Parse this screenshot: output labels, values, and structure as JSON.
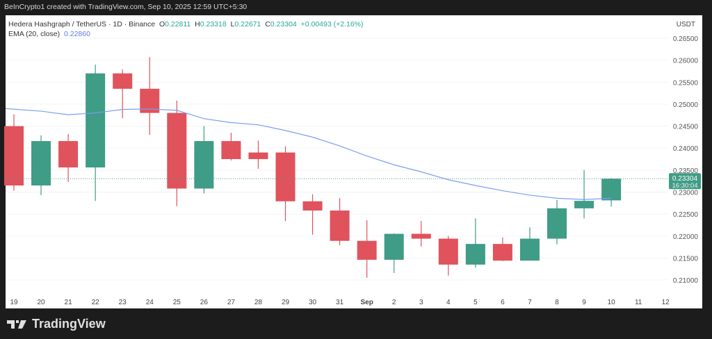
{
  "header": {
    "credit": "BeInCrypto1 created with TradingView.com, Sep 10, 2025 12:59 UTC+5:30"
  },
  "legend": {
    "symbol": "Hedera Hashgraph / TetherUS · 1D · Binance",
    "o_label": "O",
    "o": "0.22811",
    "h_label": "H",
    "h": "0.23318",
    "l_label": "L",
    "l": "0.22671",
    "c_label": "C",
    "c": "0.23304",
    "change": "+0.00493 (+2.16%)",
    "ema_label": "EMA (20, close)",
    "ema_value": "0.22860"
  },
  "footer": {
    "logo_text": "TradingView"
  },
  "chart_data": {
    "type": "candlestick",
    "currency_label": "USDT",
    "ylim": [
      0.2065,
      0.268
    ],
    "yticks": [
      "0.26500",
      "0.26000",
      "0.25500",
      "0.25000",
      "0.24500",
      "0.24000",
      "0.23500",
      "0.23000",
      "0.22500",
      "0.22000",
      "0.21500",
      "0.21000"
    ],
    "xticks": [
      "19",
      "20",
      "21",
      "22",
      "23",
      "24",
      "25",
      "26",
      "27",
      "28",
      "29",
      "30",
      "31",
      "Sep",
      "2",
      "3",
      "4",
      "5",
      "6",
      "7",
      "8",
      "9",
      "10",
      "11",
      "12"
    ],
    "colors": {
      "up": "#3f9c86",
      "down": "#e0525c",
      "ema": "#7b9ef0"
    },
    "last_price": {
      "value": "0.23304",
      "countdown": "16:30:04"
    },
    "candles": [
      {
        "d": "19",
        "o": 0.245,
        "h": 0.2477,
        "l": 0.2303,
        "c": 0.2315
      },
      {
        "d": "20",
        "o": 0.2315,
        "h": 0.2429,
        "l": 0.2293,
        "c": 0.2416
      },
      {
        "d": "21",
        "o": 0.2416,
        "h": 0.2432,
        "l": 0.2323,
        "c": 0.2356
      },
      {
        "d": "22",
        "o": 0.2356,
        "h": 0.259,
        "l": 0.228,
        "c": 0.257
      },
      {
        "d": "23",
        "o": 0.257,
        "h": 0.2579,
        "l": 0.2468,
        "c": 0.2535
      },
      {
        "d": "24",
        "o": 0.2535,
        "h": 0.2607,
        "l": 0.243,
        "c": 0.248
      },
      {
        "d": "25",
        "o": 0.248,
        "h": 0.2508,
        "l": 0.2268,
        "c": 0.2308
      },
      {
        "d": "26",
        "o": 0.2308,
        "h": 0.245,
        "l": 0.2297,
        "c": 0.2416
      },
      {
        "d": "27",
        "o": 0.2416,
        "h": 0.2435,
        "l": 0.2372,
        "c": 0.2375
      },
      {
        "d": "28",
        "o": 0.239,
        "h": 0.2417,
        "l": 0.2353,
        "c": 0.2375
      },
      {
        "d": "29",
        "o": 0.239,
        "h": 0.2404,
        "l": 0.2234,
        "c": 0.2279
      },
      {
        "d": "30",
        "o": 0.2279,
        "h": 0.2295,
        "l": 0.2203,
        "c": 0.2258
      },
      {
        "d": "31",
        "o": 0.2258,
        "h": 0.2286,
        "l": 0.2179,
        "c": 0.2189
      },
      {
        "d": "Sep 1",
        "o": 0.2189,
        "h": 0.2236,
        "l": 0.2105,
        "c": 0.2146
      },
      {
        "d": "2",
        "o": 0.2146,
        "h": 0.2206,
        "l": 0.2116,
        "c": 0.2205
      },
      {
        "d": "3",
        "o": 0.2205,
        "h": 0.2234,
        "l": 0.2176,
        "c": 0.2194
      },
      {
        "d": "4",
        "o": 0.2194,
        "h": 0.22,
        "l": 0.211,
        "c": 0.2135
      },
      {
        "d": "5",
        "o": 0.2135,
        "h": 0.224,
        "l": 0.2128,
        "c": 0.2182
      },
      {
        "d": "6",
        "o": 0.2182,
        "h": 0.2197,
        "l": 0.2143,
        "c": 0.2144
      },
      {
        "d": "7",
        "o": 0.2144,
        "h": 0.222,
        "l": 0.2144,
        "c": 0.2194
      },
      {
        "d": "8",
        "o": 0.2194,
        "h": 0.2282,
        "l": 0.2181,
        "c": 0.2263
      },
      {
        "d": "9",
        "o": 0.2263,
        "h": 0.235,
        "l": 0.224,
        "c": 0.228
      },
      {
        "d": "10",
        "o": 0.22811,
        "h": 0.23318,
        "l": 0.22671,
        "c": 0.23304
      }
    ],
    "ema": [
      0.249,
      0.2484,
      0.2476,
      0.248,
      0.2488,
      0.2489,
      0.2486,
      0.2467,
      0.2458,
      0.2453,
      0.244,
      0.2425,
      0.2405,
      0.2382,
      0.2362,
      0.2346,
      0.2328,
      0.2315,
      0.2303,
      0.2293,
      0.2286,
      0.2283,
      0.2286
    ]
  }
}
